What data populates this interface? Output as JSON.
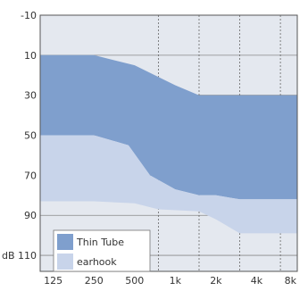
{
  "chart_data": {
    "type": "area",
    "title": "",
    "xlabel": "",
    "ylabel": "dB",
    "x_scale": "log",
    "x_ticks": [
      "125",
      "250",
      "500",
      "1k",
      "2k",
      "4k",
      "8k"
    ],
    "x_tick_values": [
      125,
      250,
      500,
      1000,
      2000,
      4000,
      8000
    ],
    "x_minor_gridlines": [
      750,
      1500,
      3000,
      6000
    ],
    "ylim": [
      -10,
      110
    ],
    "y_inverted": true,
    "y_ticks": [
      -10,
      10,
      30,
      50,
      70,
      90,
      110
    ],
    "y_tick_labels": [
      "-10",
      "10",
      "30",
      "50",
      "70",
      "90",
      "dB 110"
    ],
    "grid": true,
    "legend_position": "bottom-left",
    "series": [
      {
        "name": "Thin Tube",
        "color": "#7f9fcd",
        "upper": [
          [
            100,
            10
          ],
          [
            250,
            10
          ],
          [
            500,
            15
          ],
          [
            1000,
            25
          ],
          [
            1500,
            30
          ],
          [
            8000,
            30
          ]
        ],
        "lower": [
          [
            100,
            50
          ],
          [
            250,
            50
          ],
          [
            450,
            55
          ],
          [
            650,
            70
          ],
          [
            1000,
            77
          ],
          [
            1500,
            80
          ],
          [
            2000,
            80
          ],
          [
            3000,
            82
          ],
          [
            8000,
            82
          ]
        ]
      },
      {
        "name": "earhook",
        "color": "#c8d4ea",
        "upper": [
          [
            100,
            50
          ],
          [
            250,
            50
          ],
          [
            450,
            55
          ],
          [
            650,
            70
          ],
          [
            1000,
            77
          ],
          [
            1500,
            80
          ],
          [
            2000,
            80
          ],
          [
            3000,
            82
          ],
          [
            8000,
            82
          ]
        ],
        "lower": [
          [
            100,
            83
          ],
          [
            250,
            83
          ],
          [
            500,
            84
          ],
          [
            750,
            87
          ],
          [
            1500,
            88
          ],
          [
            2000,
            92
          ],
          [
            3000,
            99
          ],
          [
            8000,
            99
          ]
        ]
      }
    ]
  }
}
